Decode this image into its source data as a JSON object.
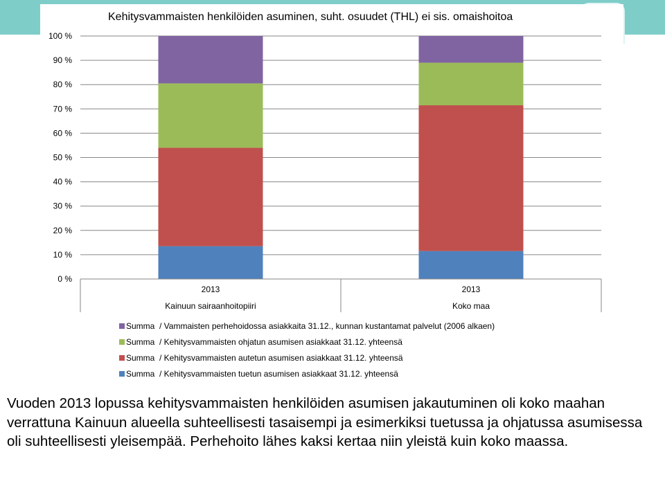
{
  "colors": {
    "band": "#7ecdc9",
    "purple": "#8064a2",
    "green": "#9bbb59",
    "red": "#c0504d",
    "blue": "#4f81bd",
    "grid": "#868686"
  },
  "chart_data": {
    "type": "bar",
    "stacked": true,
    "title": "Kehitysvammaisten henkilöiden asuminen, suht. osuudet (THL) ei sis. omaishoitoa",
    "categories": [
      "Kainuun sairaanhoitopiiri",
      "Koko maa"
    ],
    "category_years": [
      "2013",
      "2013"
    ],
    "ylim": [
      0,
      100
    ],
    "yticks": [
      "0 %",
      "10 %",
      "20 %",
      "30 %",
      "40 %",
      "50 %",
      "60 %",
      "70 %",
      "80 %",
      "90 %",
      "100 %"
    ],
    "grid": true,
    "series": [
      {
        "name": "Summa  / Kehitysvammaisten tuetun asumisen asiakkaat 31.12. yhteensä",
        "color": "#4f81bd",
        "values": [
          13.5,
          11.5
        ]
      },
      {
        "name": "Summa  / Kehitysvammaisten autetun asumisen asiakkaat 31.12. yhteensä",
        "color": "#c0504d",
        "values": [
          40.5,
          60
        ]
      },
      {
        "name": "Summa  / Kehitysvammaisten ohjatun asumisen asiakkaat 31.12. yhteensä",
        "color": "#9bbb59",
        "values": [
          26.5,
          17.5
        ]
      },
      {
        "name": "Summa  / Vammaisten perhehoidossa asiakkaita 31.12., kunnan kustantamat palvelut (2006 alkaen)",
        "color": "#8064a2",
        "values": [
          19.5,
          11
        ]
      }
    ],
    "legend": [
      {
        "label": "Summa  / Vammaisten perhehoidossa asiakkaita 31.12., kunnan kustantamat palvelut (2006 alkaen)",
        "color": "#8064a2"
      },
      {
        "label": "Summa  / Kehitysvammaisten ohjatun asumisen asiakkaat 31.12. yhteensä",
        "color": "#9bbb59"
      },
      {
        "label": "Summa  / Kehitysvammaisten autetun asumisen asiakkaat 31.12. yhteensä",
        "color": "#c0504d"
      },
      {
        "label": "Summa  / Kehitysvammaisten tuetun asumisen asiakkaat 31.12. yhteensä",
        "color": "#4f81bd"
      }
    ]
  },
  "caption": "Vuoden 2013 lopussa kehitysvammaisten henkilöiden asumisen jakautuminen oli koko maahan verrattuna Kainuun alueella suhteellisesti tasaisempi ja esimerkiksi tuetussa ja ohjatussa asumisessa oli suhteellisesti yleisempää. Perhehoito lähes kaksi kertaa niin yleistä kuin koko maassa."
}
